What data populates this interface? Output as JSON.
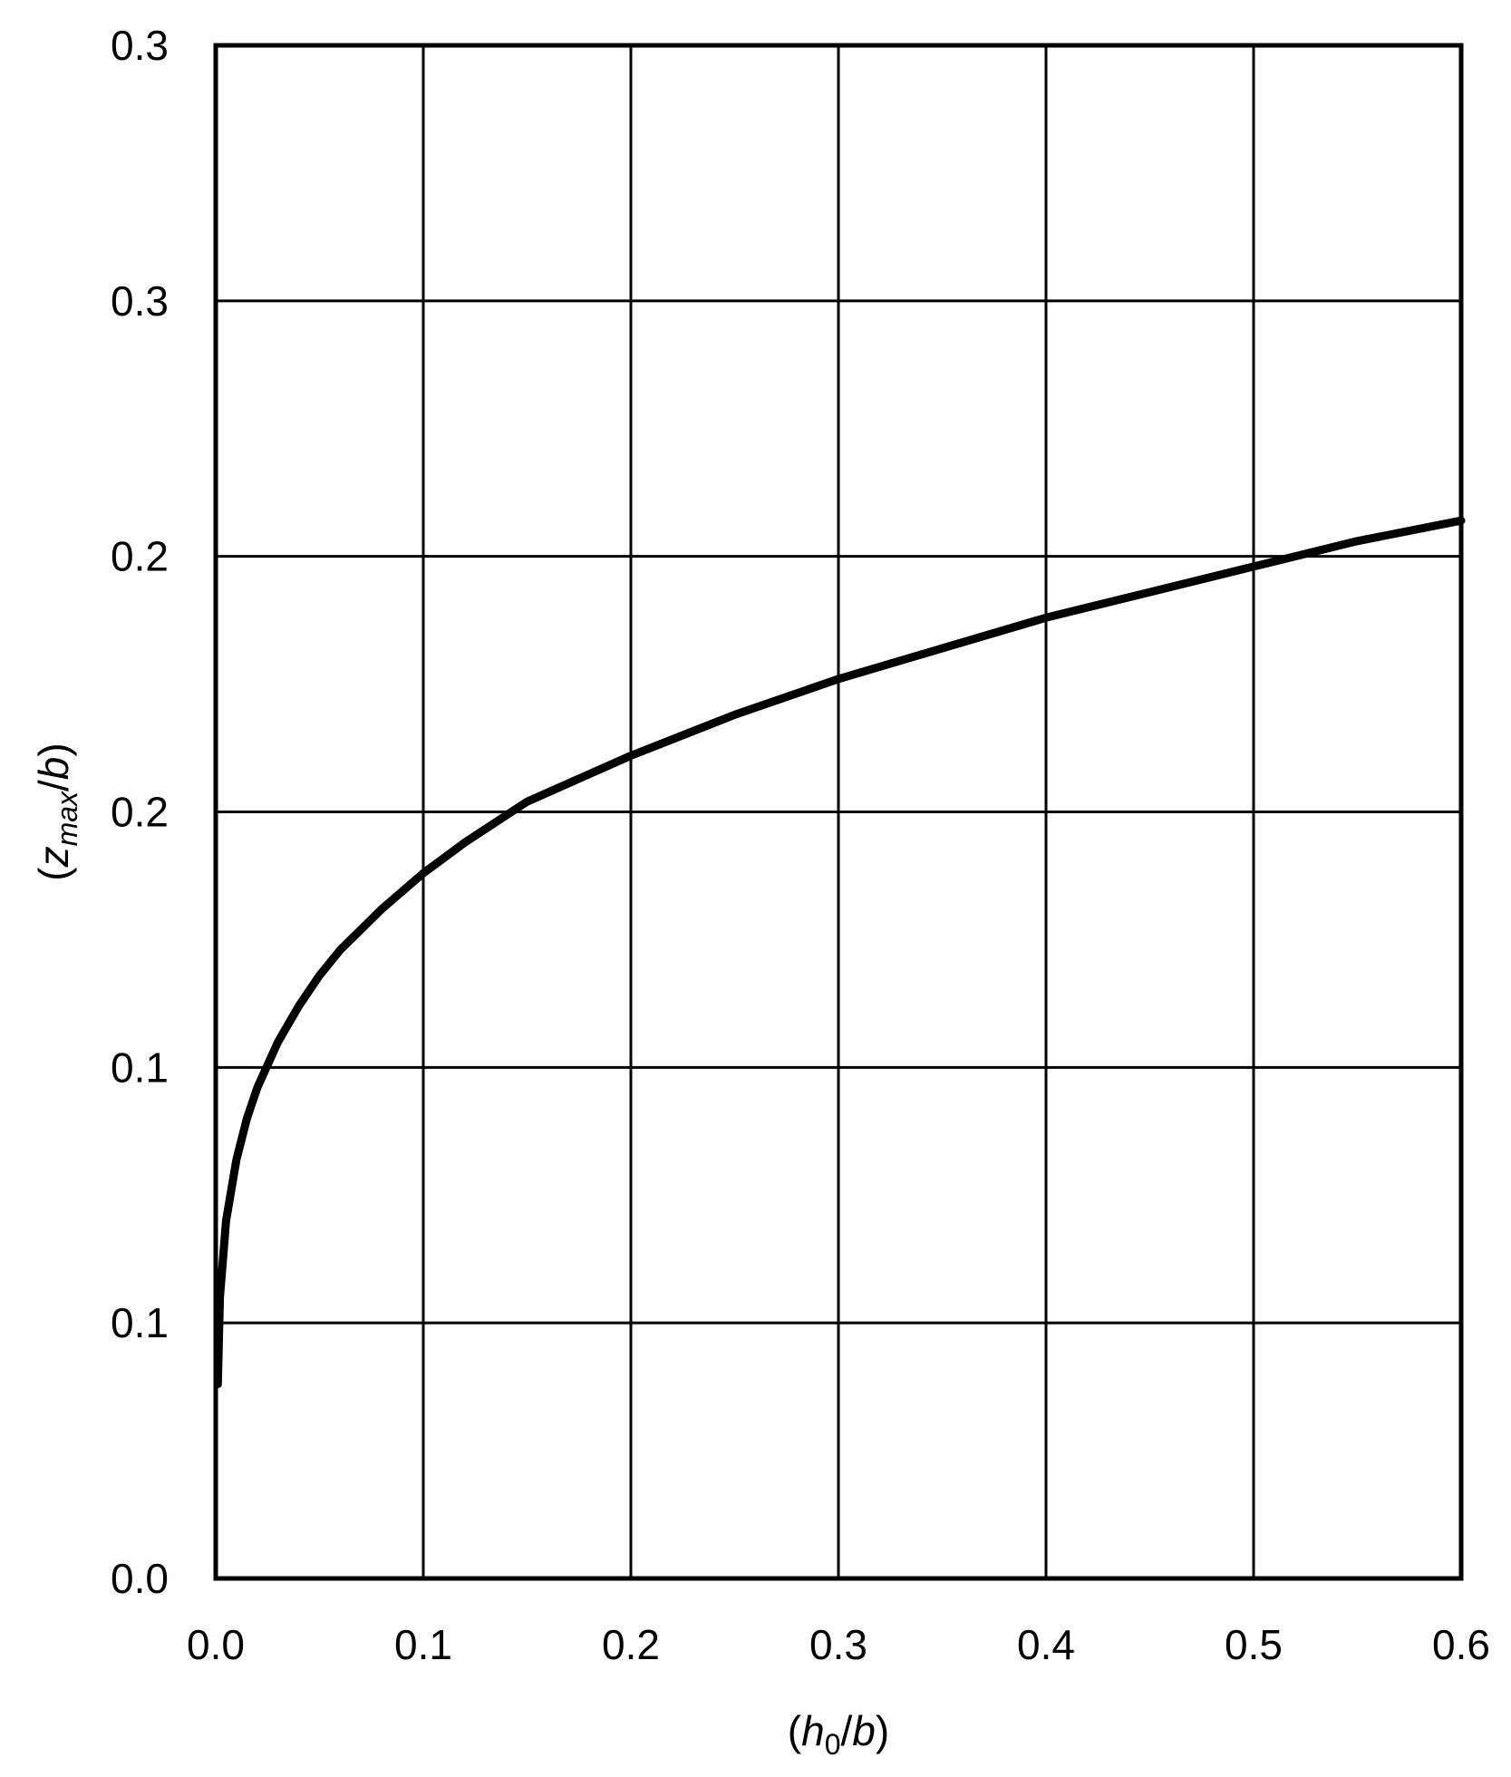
{
  "chart_data": {
    "type": "line",
    "xlabel": {
      "open": "(",
      "var": "h",
      "sub": "0",
      "sep": "/",
      "var2": "b",
      "close": ")"
    },
    "ylabel": {
      "open": "(",
      "var": "z",
      "sub": "max",
      "sep": "/",
      "var2": "b",
      "close": ")"
    },
    "xlim": [
      0,
      0.6
    ],
    "ylim": [
      0,
      0.3
    ],
    "grid": true,
    "x_tick_values": [
      0,
      0.1,
      0.2,
      0.3,
      0.4,
      0.5,
      0.6
    ],
    "x_tick_labels": [
      "0.0",
      "0.1",
      "0.2",
      "0.3",
      "0.4",
      "0.5",
      "0.6"
    ],
    "y_tick_values": [
      0,
      0.05,
      0.1,
      0.15,
      0.2,
      0.25,
      0.3
    ],
    "y_tick_labels": [
      "0.0",
      "0.1",
      "0.1",
      "0.2",
      "0.2",
      "0.3",
      "0.3"
    ],
    "series": [
      {
        "color": "#000000",
        "x": [
          0.001,
          0.002,
          0.005,
          0.01,
          0.015,
          0.02,
          0.03,
          0.04,
          0.05,
          0.06,
          0.08,
          0.1,
          0.12,
          0.15,
          0.2,
          0.25,
          0.3,
          0.35,
          0.4,
          0.45,
          0.5,
          0.55,
          0.6
        ],
        "y": [
          0.038,
          0.055,
          0.07,
          0.082,
          0.09,
          0.096,
          0.105,
          0.112,
          0.118,
          0.123,
          0.131,
          0.138,
          0.144,
          0.152,
          0.161,
          0.169,
          0.176,
          0.182,
          0.188,
          0.193,
          0.198,
          0.203,
          0.207
        ]
      }
    ]
  }
}
